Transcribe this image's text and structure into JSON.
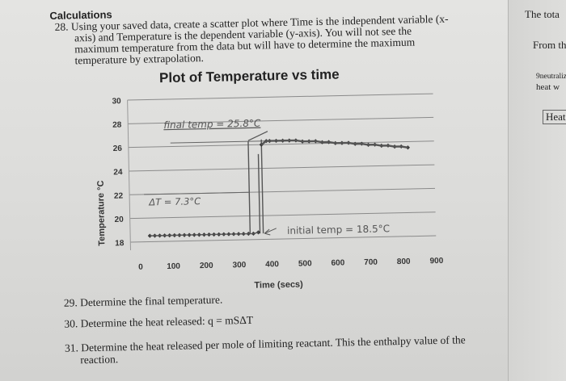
{
  "heading": "Calculations",
  "q28": {
    "line1": "28. Using your saved data, create a scatter plot where Time is the independent variable (x-",
    "line2": "axis) and Temperature is the dependent variable (y-axis).  You will not see the",
    "line3": "maximum temperature from the data but will have to determine the maximum",
    "line4": "temperature by extrapolation."
  },
  "q29": "29. Determine the final temperature.",
  "q30": "30. Determine the heat released: q = mSΔT",
  "q31": {
    "line1": "31. Determine the heat released per mole of limiting reactant.  This the enthalpy value of the",
    "line2": "reaction."
  },
  "right_column": {
    "line1": "The tota",
    "line2": "From th",
    "line3": "9neutraliz",
    "line4": "heat w",
    "line5": "Heat"
  },
  "chart_data": {
    "type": "scatter",
    "title": "Plot of Temperature vs time",
    "xlabel": "Time (secs)",
    "ylabel": "Temperature °C",
    "xlim": [
      0,
      900
    ],
    "ylim": [
      18,
      30
    ],
    "xticks": [
      0,
      100,
      200,
      300,
      400,
      500,
      600,
      700,
      800,
      900
    ],
    "yticks": [
      18,
      20,
      22,
      24,
      26,
      28,
      30
    ],
    "grid": "horizontal",
    "series": [
      {
        "x": [
          30,
          45,
          60,
          75,
          90,
          105,
          120,
          135,
          150,
          165,
          180,
          195,
          210,
          225,
          240,
          255,
          270,
          285,
          300,
          315,
          330,
          345,
          360,
          375,
          390,
          400,
          420,
          440,
          460,
          480,
          500,
          520,
          540,
          560,
          580,
          600,
          620,
          640,
          660,
          680,
          700,
          720,
          740,
          760,
          780,
          800,
          820
        ],
        "y": [
          18.5,
          18.5,
          18.5,
          18.5,
          18.5,
          18.5,
          18.5,
          18.5,
          18.5,
          18.5,
          18.5,
          18.5,
          18.5,
          18.5,
          18.5,
          18.5,
          18.5,
          18.5,
          18.5,
          18.5,
          18.5,
          18.5,
          18.6,
          26.0,
          26.3,
          26.3,
          26.3,
          26.3,
          26.3,
          26.3,
          26.2,
          26.2,
          26.2,
          26.1,
          26.1,
          26.0,
          26.0,
          26.0,
          25.9,
          25.9,
          25.8,
          25.8,
          25.7,
          25.7,
          25.6,
          25.6,
          25.5
        ]
      }
    ],
    "annotations": {
      "final": "final temp = 25.8°C",
      "delta": "ΔT = 7.3°C",
      "initial": "initial temp = 18.5°C"
    }
  }
}
